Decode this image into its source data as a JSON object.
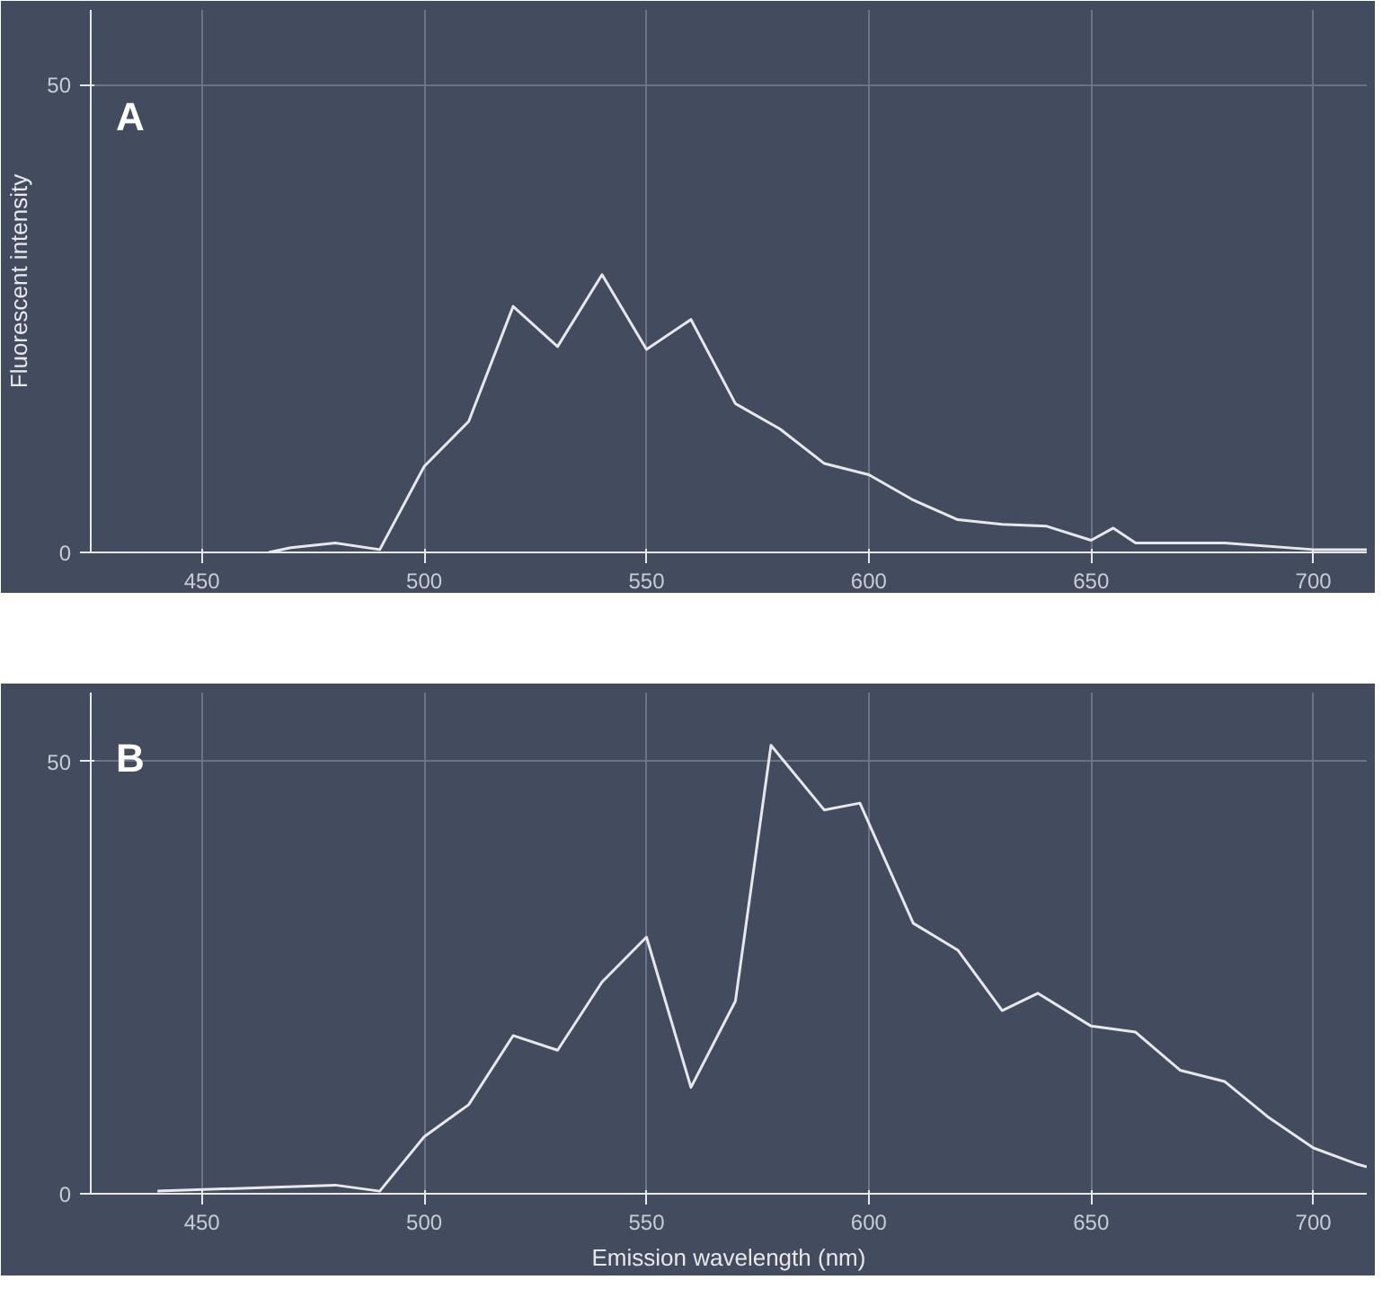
{
  "chart_data": [
    {
      "type": "line",
      "annotations": [
        "A"
      ],
      "ylabel": "Fluorescent intensity",
      "x": [
        465,
        470,
        480,
        490,
        500,
        510,
        520,
        530,
        540,
        550,
        560,
        570,
        580,
        590,
        600,
        610,
        620,
        630,
        640,
        650,
        655,
        660,
        670,
        680,
        700,
        712
      ],
      "series": [
        {
          "color": "#e8e8e8",
          "values": [
            0,
            0.5,
            1,
            0.3,
            9.2,
            14,
            26.3,
            22,
            29.7,
            21.7,
            24.9,
            15.9,
            13.2,
            9.5,
            8.3,
            5.6,
            3.5,
            3,
            2.8,
            1.3,
            2.6,
            1,
            1,
            1,
            0.3,
            0.3
          ]
        }
      ],
      "xlim": [
        425,
        712
      ],
      "ylim": [
        0,
        58
      ],
      "xticks": [
        450,
        500,
        550,
        600,
        650,
        700
      ],
      "yticks": [
        0,
        50
      ],
      "grid": true
    },
    {
      "type": "line",
      "annotations": [
        "B"
      ],
      "xlabel": "Emission wavelength (nm)",
      "x": [
        440,
        480,
        490,
        500,
        510,
        520,
        530,
        540,
        550,
        560,
        570,
        578,
        590,
        598,
        610,
        620,
        630,
        638,
        650,
        660,
        670,
        680,
        690,
        700,
        710,
        712
      ],
      "series": [
        {
          "color": "#e8e8e8",
          "values": [
            0.3,
            1,
            0.3,
            6.6,
            10.3,
            18.3,
            16.6,
            24.5,
            29.7,
            12.3,
            22.3,
            51.9,
            44.4,
            45.2,
            31.3,
            28.2,
            21.2,
            23.2,
            19.4,
            18.7,
            14.3,
            13,
            8.8,
            5.3,
            3.4,
            3.1
          ]
        }
      ],
      "xlim": [
        425,
        712
      ],
      "ylim": [
        0,
        58
      ],
      "xticks": [
        450,
        500,
        550,
        600,
        650,
        700
      ],
      "yticks": [
        0,
        50
      ],
      "grid": true
    }
  ]
}
